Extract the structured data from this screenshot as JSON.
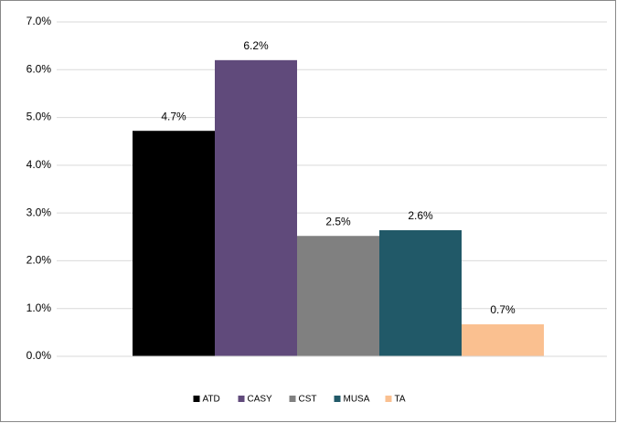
{
  "chart_data": {
    "type": "bar",
    "categories": [
      null
    ],
    "series": [
      {
        "name": "ATD",
        "color": "#000000",
        "values": [
          4.72
        ],
        "value_labels": [
          "4.7%"
        ]
      },
      {
        "name": "CASY",
        "color": "#604a7b",
        "values": [
          6.2
        ],
        "value_labels": [
          "6.2%"
        ]
      },
      {
        "name": "CST",
        "color": "#808080",
        "values": [
          2.52
        ],
        "value_labels": [
          "2.5%"
        ]
      },
      {
        "name": "MUSA",
        "color": "#215968",
        "values": [
          2.64
        ],
        "value_labels": [
          "2.6%"
        ]
      },
      {
        "name": "TA",
        "color": "#fac090",
        "values": [
          0.67
        ],
        "value_labels": [
          "0.7%"
        ]
      }
    ],
    "ylim": [
      0,
      7
    ],
    "yticks": [
      {
        "value": 0,
        "label": "0.0%"
      },
      {
        "value": 1,
        "label": "1.0%"
      },
      {
        "value": 2,
        "label": "2.0%"
      },
      {
        "value": 3,
        "label": "3.0%"
      },
      {
        "value": 4,
        "label": "4.0%"
      },
      {
        "value": 5,
        "label": "5.0%"
      },
      {
        "value": 6,
        "label": "6.0%"
      },
      {
        "value": 7,
        "label": "7.0%"
      }
    ],
    "grid": true,
    "legend": "bottom"
  }
}
